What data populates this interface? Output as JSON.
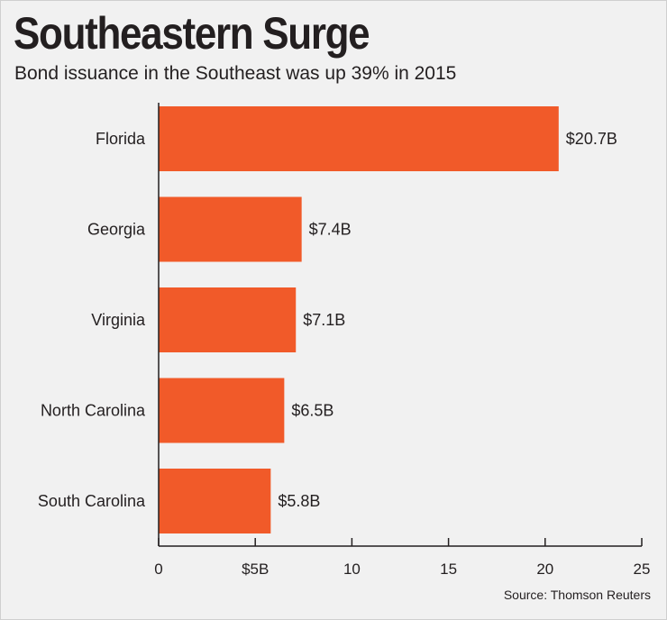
{
  "title": "Southeastern Surge",
  "subtitle": "Bond issuance in the Southeast was up 39% in 2015",
  "source": "Source: Thomson Reuters",
  "colors": {
    "bar": "#f15a29",
    "axis": "#231f20",
    "background": "#f1f1f1"
  },
  "chart_data": {
    "type": "bar",
    "orientation": "horizontal",
    "categories": [
      "Florida",
      "Georgia",
      "Virginia",
      "North Carolina",
      "South Carolina"
    ],
    "values": [
      20.7,
      7.4,
      7.1,
      6.5,
      5.8
    ],
    "value_labels": [
      "$20.7B",
      "$7.4B",
      "$7.1B",
      "$6.5B",
      "$5.8B"
    ],
    "xlim": [
      0,
      25
    ],
    "x_ticks": [
      0,
      5,
      10,
      15,
      20,
      25
    ],
    "x_tick_labels": [
      "0",
      "$5B",
      "10",
      "15",
      "20",
      "25"
    ],
    "grid": false,
    "legend": "none"
  }
}
